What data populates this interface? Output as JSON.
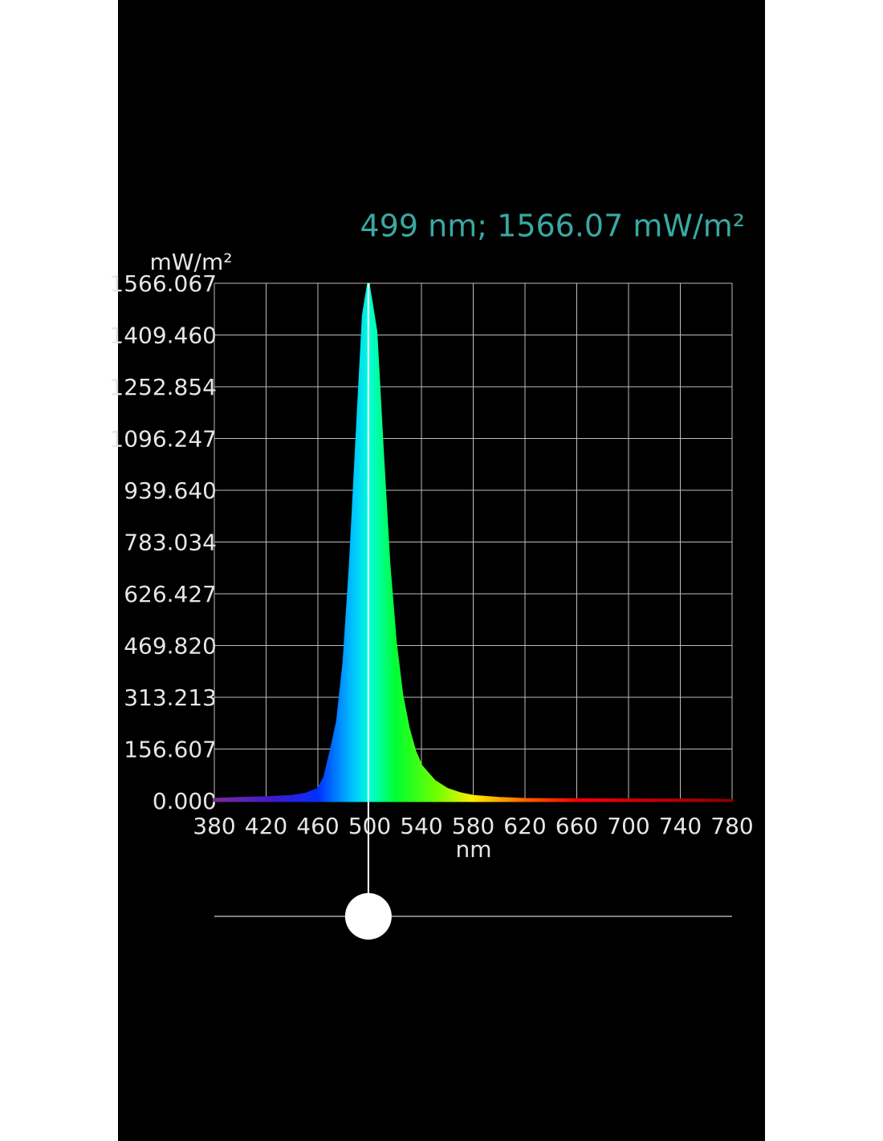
{
  "chart_data": {
    "type": "area",
    "annotation": "499 nm; 1566.07 mW/m²",
    "y_label": "mW/m²",
    "x_label": "nm",
    "cursor_x": 499,
    "x": [
      380,
      400,
      420,
      440,
      450,
      460,
      465,
      470,
      475,
      480,
      485,
      490,
      495,
      499,
      505,
      510,
      515,
      520,
      525,
      530,
      535,
      540,
      550,
      560,
      570,
      580,
      600,
      620,
      650,
      700,
      750,
      780
    ],
    "values": [
      5,
      8,
      10,
      14,
      20,
      35,
      70,
      150,
      240,
      420,
      720,
      1100,
      1470,
      1566,
      1420,
      1060,
      720,
      480,
      320,
      220,
      150,
      105,
      60,
      35,
      22,
      14,
      8,
      5,
      4,
      3,
      3,
      2
    ],
    "xlim": [
      380,
      780
    ],
    "xticks": [
      380,
      420,
      460,
      500,
      540,
      580,
      620,
      660,
      700,
      740,
      780
    ],
    "ylim": [
      0,
      1566.067
    ],
    "yticks": [
      {
        "value": 0,
        "label": "0.000"
      },
      156.607,
      313.213,
      {
        "value": 469.82,
        "label": "469.820"
      },
      626.427,
      783.034,
      {
        "value": 939.64,
        "label": "939.640"
      },
      1096.247,
      1252.854,
      {
        "value": 1409.46,
        "label": "1409.460"
      },
      1566.067
    ],
    "grid": true
  }
}
